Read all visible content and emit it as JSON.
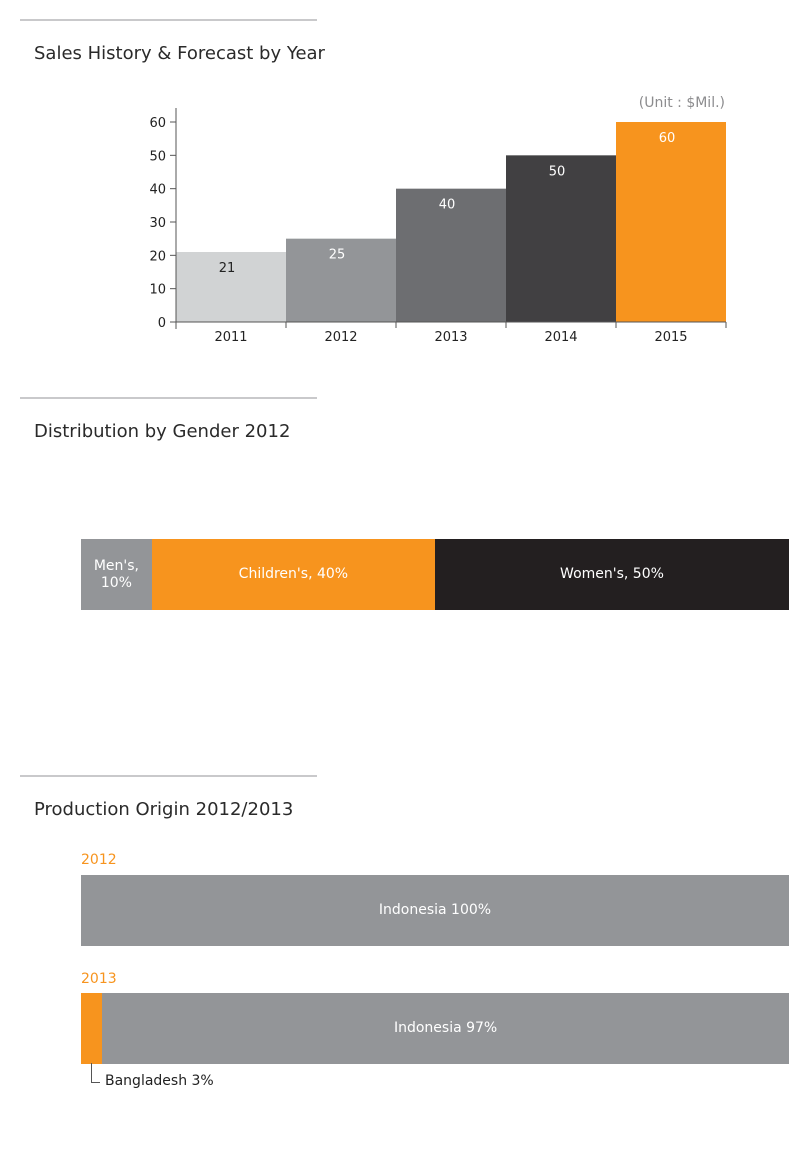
{
  "sales_section": {
    "title": "Sales History & Forecast by Year",
    "unit_note": "(Unit : $Mil.)"
  },
  "gender_section": {
    "title": "Distribution by Gender 2012"
  },
  "origin_section": {
    "title": "Production Origin 2012/2013",
    "bangladesh_callout": "Bangladesh 3%"
  },
  "colors": {
    "orange": "#f7941e",
    "gray": "#939598",
    "black": "#231f20"
  },
  "chart_data": [
    {
      "type": "bar",
      "title": "Sales History & Forecast by Year",
      "unit": "(Unit : $Mil.)",
      "categories": [
        "2011",
        "2012",
        "2013",
        "2014",
        "2015"
      ],
      "values": [
        21,
        25,
        40,
        50,
        60
      ],
      "data_labels": [
        "21",
        "25",
        "40",
        "50",
        "60"
      ],
      "bar_colors": [
        "#d1d3d4",
        "#939598",
        "#6d6e71",
        "#414042",
        "#f7941e"
      ],
      "label_colors": [
        "#222222",
        "#ffffff",
        "#ffffff",
        "#ffffff",
        "#ffffff"
      ],
      "yticks": [
        "0",
        "10",
        "20",
        "30",
        "40",
        "50",
        "60"
      ],
      "ylim": [
        0,
        60
      ]
    },
    {
      "type": "bar",
      "stacked": true,
      "orientation": "horizontal",
      "title": "Distribution by Gender 2012",
      "segments": [
        {
          "label": "Men's,\n10%",
          "value": 10,
          "color": "#939598"
        },
        {
          "label": "Children's, 40%",
          "value": 40,
          "color": "#f7941e"
        },
        {
          "label": "Women's,  50%",
          "value": 50,
          "color": "#231f20"
        }
      ]
    },
    {
      "type": "bar",
      "stacked": true,
      "orientation": "horizontal",
      "title": "Production Origin 2012/2013",
      "rows": [
        {
          "year": "2012",
          "segments": [
            {
              "label": "Indonesia 100%",
              "value": 100,
              "color": "#939598"
            }
          ]
        },
        {
          "year": "2013",
          "segments": [
            {
              "label": "",
              "value": 3,
              "color": "#f7941e"
            },
            {
              "label": "Indonesia 97%",
              "value": 97,
              "color": "#939598"
            }
          ]
        }
      ]
    }
  ]
}
